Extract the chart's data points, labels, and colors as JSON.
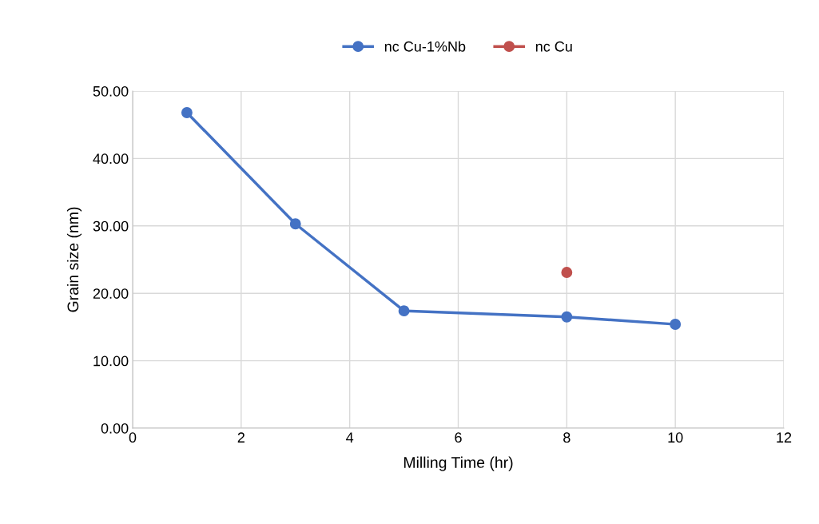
{
  "chart_data": {
    "type": "line",
    "xlabel": "Milling Time (hr)",
    "ylabel": "Grain size (nm)",
    "xlim": [
      0,
      12
    ],
    "xticks": [
      0,
      2,
      4,
      6,
      8,
      10,
      12
    ],
    "ylim": [
      0,
      50
    ],
    "yticks": [
      {
        "value": 0,
        "label": "0.00"
      },
      {
        "value": 10,
        "label": "10.00"
      },
      {
        "value": 20,
        "label": "20.00"
      },
      {
        "value": 30,
        "label": "30.00"
      },
      {
        "value": 40,
        "label": "40.00"
      },
      {
        "value": 50,
        "label": "50.00"
      }
    ],
    "grid": true,
    "legend": "top",
    "marker": "circle",
    "line_style": "solid",
    "series": [
      {
        "name": "nc Cu-1%Nb",
        "color": "#4472c4",
        "x": [
          1,
          3,
          5,
          8,
          10
        ],
        "values": [
          46.8,
          30.3,
          17.4,
          16.5,
          15.4
        ]
      },
      {
        "name": "nc Cu",
        "color": "#c0504d",
        "type": "scatter",
        "x": [
          8
        ],
        "values": [
          23.1
        ]
      }
    ]
  }
}
